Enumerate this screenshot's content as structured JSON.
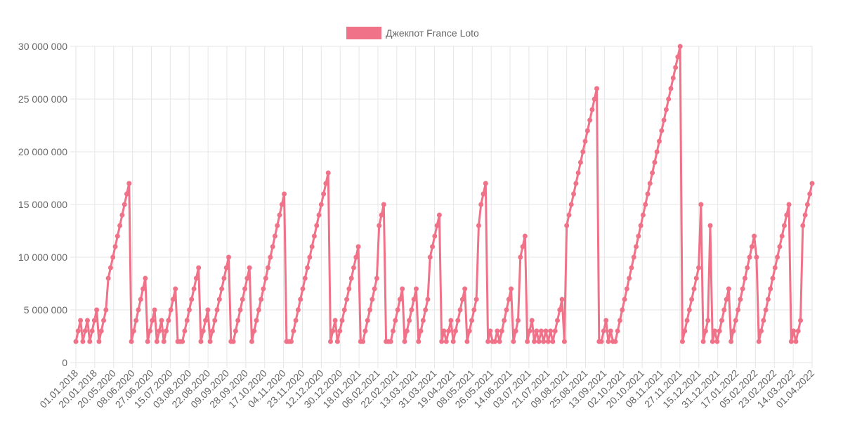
{
  "chart_data": {
    "type": "line",
    "legend": "Джекпот France Loto",
    "legend_position": "top-center",
    "color": "#f07289",
    "y_ticks": [
      "0",
      "5 000 000",
      "10 000 000",
      "15 000 000",
      "20 000 000",
      "25 000 000",
      "30 000 000"
    ],
    "ylim": [
      0,
      30000000
    ],
    "grid": true,
    "x_tick_labels": [
      "01.01.2018",
      "20.01.2018",
      "20.05.2020",
      "08.06.2020",
      "27.06.2020",
      "15.07.2020",
      "03.08.2020",
      "22.08.2020",
      "09.09.2020",
      "28.09.2020",
      "17.10.2020",
      "04.11.2020",
      "23.11.2020",
      "12.12.2020",
      "30.12.2020",
      "18.01.2021",
      "06.02.2021",
      "22.02.2021",
      "13.03.2021",
      "31.03.2021",
      "19.04.2021",
      "08.05.2021",
      "26.05.2021",
      "14.06.2021",
      "03.07.2021",
      "21.07.2021",
      "09.08.2021",
      "25.08.2021",
      "13.09.2021",
      "02.10.2021",
      "20.10.2021",
      "08.11.2021",
      "27.11.2021",
      "15.12.2021",
      "31.12.2021",
      "17.01.2022",
      "05.02.2022",
      "23.02.2022",
      "14.03.2022",
      "01.04.2022"
    ],
    "values": [
      2000000,
      3000000,
      4000000,
      2000000,
      3000000,
      4000000,
      2000000,
      3000000,
      4000000,
      5000000,
      2000000,
      3000000,
      4000000,
      5000000,
      8000000,
      9000000,
      10000000,
      11000000,
      12000000,
      13000000,
      14000000,
      15000000,
      16000000,
      17000000,
      2000000,
      3000000,
      4000000,
      5000000,
      6000000,
      7000000,
      8000000,
      2000000,
      3000000,
      4000000,
      5000000,
      2000000,
      3000000,
      4000000,
      2000000,
      3000000,
      4000000,
      5000000,
      6000000,
      7000000,
      2000000,
      2000000,
      2000000,
      3000000,
      4000000,
      5000000,
      6000000,
      7000000,
      8000000,
      9000000,
      2000000,
      3000000,
      4000000,
      5000000,
      2000000,
      3000000,
      4000000,
      5000000,
      6000000,
      7000000,
      8000000,
      9000000,
      10000000,
      2000000,
      2000000,
      3000000,
      4000000,
      5000000,
      6000000,
      7000000,
      8000000,
      9000000,
      2000000,
      3000000,
      4000000,
      5000000,
      6000000,
      7000000,
      8000000,
      9000000,
      10000000,
      11000000,
      12000000,
      13000000,
      14000000,
      15000000,
      16000000,
      2000000,
      2000000,
      2000000,
      3000000,
      4000000,
      5000000,
      6000000,
      7000000,
      8000000,
      9000000,
      10000000,
      11000000,
      12000000,
      13000000,
      14000000,
      15000000,
      16000000,
      17000000,
      18000000,
      2000000,
      3000000,
      4000000,
      2000000,
      3000000,
      4000000,
      5000000,
      6000000,
      7000000,
      8000000,
      9000000,
      10000000,
      11000000,
      2000000,
      2000000,
      3000000,
      4000000,
      5000000,
      6000000,
      7000000,
      8000000,
      13000000,
      14000000,
      15000000,
      2000000,
      2000000,
      2000000,
      3000000,
      4000000,
      5000000,
      6000000,
      7000000,
      2000000,
      3000000,
      4000000,
      5000000,
      6000000,
      7000000,
      2000000,
      3000000,
      4000000,
      5000000,
      6000000,
      10000000,
      11000000,
      12000000,
      13000000,
      14000000,
      2000000,
      3000000,
      2000000,
      3000000,
      4000000,
      2000000,
      3000000,
      4000000,
      5000000,
      6000000,
      7000000,
      2000000,
      3000000,
      4000000,
      5000000,
      6000000,
      13000000,
      15000000,
      16000000,
      17000000,
      2000000,
      3000000,
      2000000,
      2000000,
      3000000,
      2000000,
      3000000,
      4000000,
      5000000,
      6000000,
      7000000,
      2000000,
      3000000,
      4000000,
      10000000,
      11000000,
      12000000,
      2000000,
      3000000,
      4000000,
      2000000,
      3000000,
      2000000,
      3000000,
      2000000,
      3000000,
      2000000,
      3000000,
      2000000,
      3000000,
      4000000,
      5000000,
      6000000,
      2000000,
      13000000,
      14000000,
      15000000,
      16000000,
      17000000,
      18000000,
      19000000,
      20000000,
      21000000,
      22000000,
      23000000,
      24000000,
      25000000,
      26000000,
      2000000,
      2000000,
      3000000,
      4000000,
      2000000,
      3000000,
      2000000,
      2000000,
      3000000,
      4000000,
      5000000,
      6000000,
      7000000,
      8000000,
      9000000,
      10000000,
      11000000,
      12000000,
      13000000,
      14000000,
      15000000,
      16000000,
      17000000,
      18000000,
      19000000,
      20000000,
      21000000,
      22000000,
      23000000,
      24000000,
      25000000,
      26000000,
      27000000,
      28000000,
      29000000,
      30000000,
      2000000,
      3000000,
      4000000,
      5000000,
      6000000,
      7000000,
      8000000,
      9000000,
      15000000,
      2000000,
      3000000,
      4000000,
      13000000,
      2000000,
      3000000,
      2000000,
      3000000,
      4000000,
      5000000,
      6000000,
      7000000,
      2000000,
      3000000,
      4000000,
      5000000,
      6000000,
      7000000,
      8000000,
      9000000,
      10000000,
      11000000,
      12000000,
      10000000,
      2000000,
      3000000,
      4000000,
      5000000,
      6000000,
      7000000,
      8000000,
      9000000,
      10000000,
      11000000,
      12000000,
      13000000,
      14000000,
      15000000,
      2000000,
      3000000,
      2000000,
      3000000,
      4000000,
      13000000,
      14000000,
      15000000,
      16000000,
      17000000
    ]
  }
}
